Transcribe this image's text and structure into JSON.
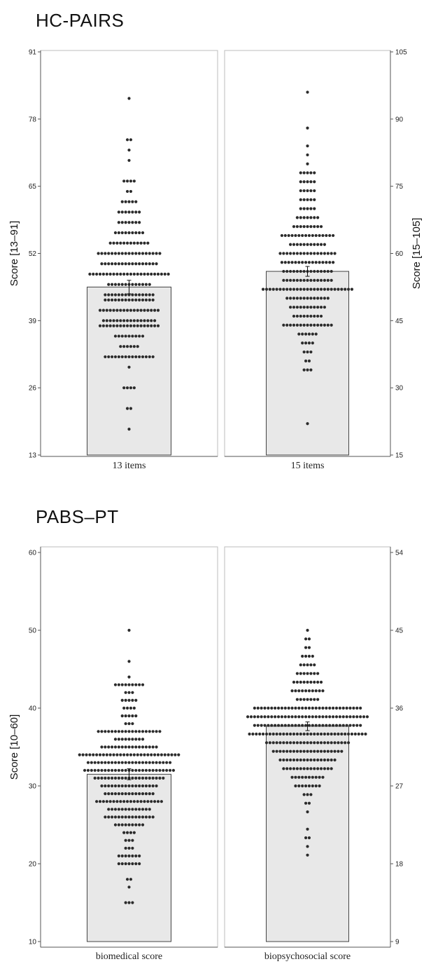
{
  "chart_data": [
    {
      "type": "bar",
      "title": "HC-PAIRS",
      "categories": [
        "13 items",
        "15 items"
      ],
      "values": [
        45.5,
        56.0
      ],
      "error_bars": [
        [
          44.2,
          46.8
        ],
        [
          54.9,
          57.1
        ]
      ],
      "left_axis": {
        "label": "Score [13–91]",
        "ylim": [
          13,
          91
        ],
        "ticks": [
          13,
          26,
          39,
          52,
          65,
          78,
          91
        ]
      },
      "right_axis": {
        "label": "Score [15–105]",
        "ylim": [
          15,
          105
        ],
        "ticks": [
          15,
          30,
          45,
          60,
          75,
          90,
          105
        ]
      },
      "grid": false,
      "distributions": [
        {
          "axis": "left",
          "levels": [
            [
              18,
              1
            ],
            [
              22,
              2
            ],
            [
              26,
              4
            ],
            [
              30,
              1
            ],
            [
              32,
              15
            ],
            [
              34,
              6
            ],
            [
              36,
              9
            ],
            [
              38,
              18
            ],
            [
              39,
              16
            ],
            [
              41,
              18
            ],
            [
              43,
              15
            ],
            [
              44,
              15
            ],
            [
              46,
              13
            ],
            [
              48,
              24
            ],
            [
              50,
              17
            ],
            [
              52,
              19
            ],
            [
              54,
              12
            ],
            [
              56,
              9
            ],
            [
              58,
              7
            ],
            [
              60,
              7
            ],
            [
              62,
              5
            ],
            [
              64,
              2
            ],
            [
              66,
              4
            ],
            [
              70,
              1
            ],
            [
              72,
              1
            ],
            [
              74,
              2
            ],
            [
              82,
              1
            ]
          ]
        },
        {
          "axis": "right",
          "levels": [
            [
              22,
              1
            ],
            [
              34,
              3
            ],
            [
              36,
              2
            ],
            [
              38,
              3
            ],
            [
              40,
              4
            ],
            [
              42,
              6
            ],
            [
              44,
              15
            ],
            [
              46,
              9
            ],
            [
              48,
              11
            ],
            [
              50,
              13
            ],
            [
              52,
              27
            ],
            [
              54,
              15
            ],
            [
              56,
              15
            ],
            [
              58,
              16
            ],
            [
              60,
              17
            ],
            [
              62,
              11
            ],
            [
              64,
              16
            ],
            [
              66,
              9
            ],
            [
              68,
              7
            ],
            [
              70,
              5
            ],
            [
              72,
              5
            ],
            [
              74,
              5
            ],
            [
              76,
              5
            ],
            [
              78,
              5
            ],
            [
              80,
              1
            ],
            [
              82,
              1
            ],
            [
              84,
              1
            ],
            [
              88,
              1
            ],
            [
              96,
              1
            ]
          ]
        }
      ]
    },
    {
      "type": "bar",
      "title": "PABS–PT",
      "categories": [
        "biomedical score",
        "biopsychosocial score"
      ],
      "values": [
        31.5,
        33.9
      ],
      "error_bars": [
        [
          30.8,
          32.2
        ],
        [
          33.4,
          34.4
        ]
      ],
      "left_axis": {
        "label": "Score [10–60]",
        "ylim": [
          10,
          60
        ],
        "ticks": [
          10,
          20,
          30,
          40,
          50,
          60
        ]
      },
      "right_axis": {
        "label": "",
        "ylim": [
          9,
          54
        ],
        "ticks": [
          9,
          18,
          27,
          36,
          45,
          54
        ]
      },
      "grid": false,
      "distributions": [
        {
          "axis": "left",
          "levels": [
            [
              15,
              3
            ],
            [
              17,
              1
            ],
            [
              18,
              2
            ],
            [
              20,
              7
            ],
            [
              21,
              7
            ],
            [
              22,
              3
            ],
            [
              23,
              3
            ],
            [
              24,
              4
            ],
            [
              25,
              9
            ],
            [
              26,
              15
            ],
            [
              27,
              13
            ],
            [
              28,
              20
            ],
            [
              29,
              15
            ],
            [
              30,
              17
            ],
            [
              31,
              21
            ],
            [
              32,
              27
            ],
            [
              33,
              25
            ],
            [
              34,
              30
            ],
            [
              35,
              17
            ],
            [
              36,
              9
            ],
            [
              37,
              19
            ],
            [
              38,
              3
            ],
            [
              39,
              5
            ],
            [
              40,
              4
            ],
            [
              41,
              5
            ],
            [
              42,
              3
            ],
            [
              43,
              9
            ],
            [
              44,
              1
            ],
            [
              46,
              1
            ],
            [
              50,
              1
            ]
          ]
        },
        {
          "axis": "right",
          "levels": [
            [
              19,
              1
            ],
            [
              20,
              1
            ],
            [
              21,
              2
            ],
            [
              22,
              1
            ],
            [
              24,
              1
            ],
            [
              25,
              2
            ],
            [
              26,
              3
            ],
            [
              27,
              8
            ],
            [
              28,
              10
            ],
            [
              29,
              15
            ],
            [
              30,
              17
            ],
            [
              31,
              21
            ],
            [
              32,
              25
            ],
            [
              33,
              35
            ],
            [
              34,
              32
            ],
            [
              35,
              36
            ],
            [
              36,
              32
            ],
            [
              37,
              7
            ],
            [
              38,
              10
            ],
            [
              39,
              9
            ],
            [
              40,
              7
            ],
            [
              41,
              5
            ],
            [
              42,
              4
            ],
            [
              43,
              2
            ],
            [
              44,
              2
            ],
            [
              45,
              1
            ]
          ]
        }
      ]
    }
  ]
}
